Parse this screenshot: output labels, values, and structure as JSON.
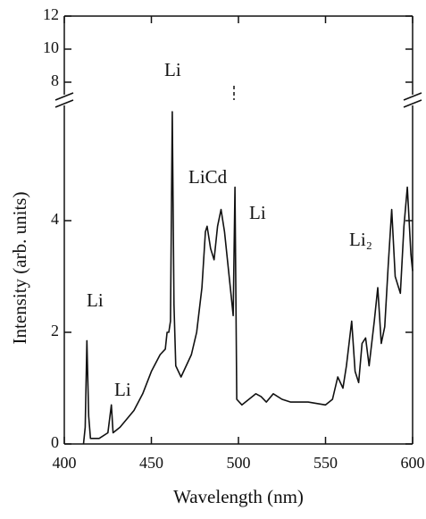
{
  "chart_data": {
    "type": "line",
    "x_label": "Wavelength (nm)",
    "y_label": "Intensity (arb. units)",
    "color": "#111111",
    "xlim": [
      400,
      600
    ],
    "xticks": [
      400,
      450,
      500,
      550,
      600
    ],
    "ylim": [
      0,
      6
    ],
    "yticks": [
      0,
      2,
      4
    ],
    "ylim_upper": [
      7.2,
      12
    ],
    "yticks_upper": [
      8,
      10,
      12
    ],
    "annotations": [
      "Li",
      "Li",
      "Li",
      "LiCd",
      "Li",
      "Li₂"
    ],
    "x": [
      411,
      412,
      413,
      414,
      415,
      420,
      425,
      427,
      428,
      432,
      440,
      445,
      450,
      455,
      458,
      459,
      460,
      461,
      462,
      463,
      464,
      467,
      470,
      473,
      476,
      479,
      481,
      482,
      484,
      486,
      488,
      490,
      492,
      494,
      496,
      497,
      498,
      499,
      502,
      506,
      510,
      513,
      516,
      520,
      525,
      530,
      540,
      550,
      554,
      557,
      560,
      562,
      565,
      567,
      569,
      571,
      573,
      575,
      578,
      580,
      582,
      584,
      586,
      588,
      590,
      593,
      595,
      597,
      599,
      600
    ],
    "values": [
      0,
      0.3,
      1.85,
      0.5,
      0.1,
      0.1,
      0.2,
      0.7,
      0.2,
      0.3,
      0.6,
      0.9,
      1.3,
      1.6,
      1.7,
      2.0,
      2.0,
      2.2,
      5.95,
      2.5,
      1.4,
      1.2,
      1.4,
      1.6,
      2.0,
      2.8,
      3.8,
      3.9,
      3.5,
      3.3,
      3.9,
      4.2,
      3.8,
      3.2,
      2.6,
      2.3,
      4.6,
      0.8,
      0.7,
      0.8,
      0.9,
      0.85,
      0.75,
      0.9,
      0.8,
      0.75,
      0.75,
      0.7,
      0.8,
      1.2,
      1.0,
      1.4,
      2.2,
      1.3,
      1.1,
      1.8,
      1.9,
      1.4,
      2.2,
      2.8,
      1.8,
      2.1,
      3.2,
      4.2,
      3.0,
      2.7,
      3.9,
      4.6,
      3.4,
      3.1
    ]
  }
}
